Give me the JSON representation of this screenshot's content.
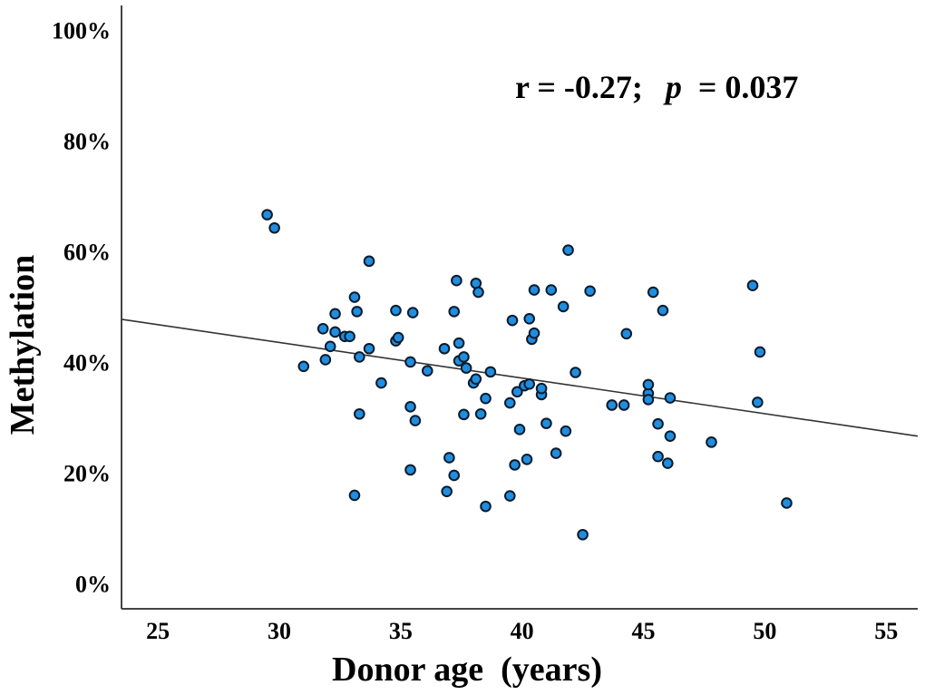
{
  "chart_data": {
    "type": "scatter",
    "title": "",
    "xlabel": "Donor age  (years)",
    "ylabel": "Methylation",
    "xlim": [
      23.5,
      56.3
    ],
    "ylim": [
      -4.5,
      104.5
    ],
    "xticks": [
      25,
      30,
      35,
      40,
      45,
      50,
      55
    ],
    "yticks": [
      0,
      20,
      40,
      60,
      80,
      100
    ],
    "ytick_labels": [
      "0%",
      "20%",
      "40%",
      "60%",
      "80%",
      "100%"
    ],
    "grid": false,
    "annotation": {
      "r_part": "r = -0.27;",
      "p_symbol": "p",
      "p_part": " = 0.037"
    },
    "fit_line": {
      "x": [
        23.5,
        56.3
      ],
      "y": [
        47.8,
        26.7
      ]
    },
    "point_color": "#1f8ee0",
    "points": [
      [
        29.5,
        66.7
      ],
      [
        29.8,
        64.3
      ],
      [
        31.0,
        39.3
      ],
      [
        31.8,
        46.1
      ],
      [
        31.9,
        40.5
      ],
      [
        32.1,
        42.9
      ],
      [
        32.3,
        48.8
      ],
      [
        32.3,
        45.5
      ],
      [
        32.7,
        44.7
      ],
      [
        32.9,
        44.7
      ],
      [
        33.1,
        51.8
      ],
      [
        33.1,
        16.0
      ],
      [
        33.2,
        49.2
      ],
      [
        33.3,
        41.0
      ],
      [
        33.3,
        30.7
      ],
      [
        33.7,
        58.3
      ],
      [
        33.7,
        42.5
      ],
      [
        34.2,
        36.3
      ],
      [
        34.8,
        49.4
      ],
      [
        34.8,
        43.9
      ],
      [
        34.9,
        44.5
      ],
      [
        35.4,
        40.1
      ],
      [
        35.4,
        32.0
      ],
      [
        35.4,
        20.6
      ],
      [
        35.5,
        49.0
      ],
      [
        35.6,
        29.5
      ],
      [
        36.1,
        38.5
      ],
      [
        36.8,
        42.5
      ],
      [
        36.9,
        16.7
      ],
      [
        37.0,
        22.8
      ],
      [
        37.2,
        49.2
      ],
      [
        37.2,
        19.6
      ],
      [
        37.3,
        54.8
      ],
      [
        37.4,
        43.5
      ],
      [
        37.4,
        40.3
      ],
      [
        37.6,
        41.0
      ],
      [
        37.6,
        30.6
      ],
      [
        37.7,
        39.0
      ],
      [
        38.0,
        36.3
      ],
      [
        38.1,
        37.0
      ],
      [
        38.1,
        54.3
      ],
      [
        38.2,
        52.7
      ],
      [
        38.3,
        30.7
      ],
      [
        38.5,
        33.5
      ],
      [
        38.5,
        14.0
      ],
      [
        38.7,
        38.3
      ],
      [
        39.5,
        32.7
      ],
      [
        39.5,
        15.9
      ],
      [
        39.6,
        47.6
      ],
      [
        39.7,
        21.5
      ],
      [
        39.8,
        34.7
      ],
      [
        39.9,
        27.9
      ],
      [
        40.1,
        35.8
      ],
      [
        40.2,
        22.5
      ],
      [
        40.3,
        47.9
      ],
      [
        40.3,
        36.1
      ],
      [
        40.4,
        44.2
      ],
      [
        40.5,
        45.3
      ],
      [
        40.5,
        53.1
      ],
      [
        40.8,
        34.2
      ],
      [
        40.8,
        35.3
      ],
      [
        41.0,
        29.0
      ],
      [
        41.2,
        53.1
      ],
      [
        41.4,
        23.6
      ],
      [
        41.7,
        50.1
      ],
      [
        41.8,
        27.6
      ],
      [
        41.9,
        60.3
      ],
      [
        42.2,
        38.2
      ],
      [
        42.5,
        8.9
      ],
      [
        42.8,
        52.9
      ],
      [
        43.7,
        32.3
      ],
      [
        44.2,
        32.3
      ],
      [
        44.3,
        45.2
      ],
      [
        45.2,
        34.4
      ],
      [
        45.2,
        36.0
      ],
      [
        45.2,
        33.3
      ],
      [
        45.4,
        52.7
      ],
      [
        45.6,
        28.9
      ],
      [
        45.6,
        23.0
      ],
      [
        45.8,
        49.4
      ],
      [
        46.0,
        21.8
      ],
      [
        46.1,
        33.6
      ],
      [
        46.1,
        26.7
      ],
      [
        47.8,
        25.6
      ],
      [
        49.5,
        53.9
      ],
      [
        49.7,
        32.8
      ],
      [
        49.8,
        41.9
      ],
      [
        50.9,
        14.6
      ]
    ]
  }
}
